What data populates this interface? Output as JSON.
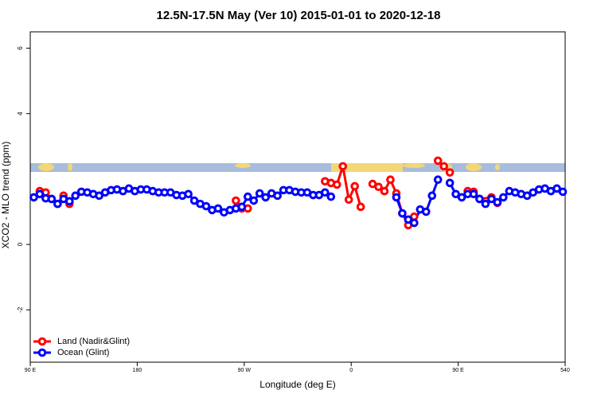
{
  "chart_data": {
    "type": "line",
    "title": "12.5N-17.5N May (Ver 10)   2015-01-01 to 2020-12-18",
    "x_label": "Longitude (deg E)",
    "y_label": "XCO2 - MLO trend (ppm)",
    "xlim": [
      90,
      540
    ],
    "ylim": [
      -3.6,
      6.5
    ],
    "xticks": [
      {
        "value": 90,
        "label": "90 E"
      },
      180,
      {
        "value": 270,
        "label": "90 W"
      },
      {
        "value": 360,
        "label": "0"
      },
      {
        "value": 450,
        "label": "90 E"
      },
      540
    ],
    "yticks": [
      -2,
      0,
      4,
      6
    ],
    "legend": "bottomleft",
    "series": [
      {
        "name": "Land (Nadir&Glint)",
        "color": "#ff0000",
        "x": [
          98,
          103,
          108,
          113,
          118,
          123,
          128,
          263,
          268,
          273,
          278,
          338,
          343,
          348,
          353,
          358,
          363,
          368,
          373,
          378,
          383,
          388,
          393,
          398,
          403,
          408,
          413,
          418,
          433,
          438,
          443,
          448,
          458,
          463,
          468,
          478,
          483
        ],
        "values": [
          1.63,
          1.59,
          1.39,
          1.24,
          1.49,
          1.24,
          null,
          1.34,
          1.1,
          1.1,
          null,
          1.93,
          1.88,
          1.83,
          2.39,
          1.37,
          1.78,
          1.15,
          null,
          1.85,
          1.76,
          1.63,
          1.98,
          1.56,
          0.95,
          0.59,
          0.85,
          null,
          2.56,
          2.39,
          2.2,
          null,
          1.63,
          1.61,
          1.39,
          1.44,
          1.27
        ]
      },
      {
        "name": "Ocean (Glint)",
        "color": "#0000ff",
        "x": [
          93,
          98,
          103,
          108,
          113,
          118,
          123,
          128,
          133,
          138,
          143,
          148,
          153,
          158,
          163,
          168,
          173,
          178,
          183,
          188,
          193,
          198,
          203,
          208,
          213,
          218,
          223,
          228,
          233,
          238,
          243,
          248,
          253,
          258,
          263,
          268,
          273,
          278,
          283,
          288,
          293,
          298,
          303,
          308,
          313,
          318,
          323,
          328,
          333,
          338,
          343,
          348,
          398,
          403,
          408,
          413,
          418,
          423,
          428,
          433,
          438,
          443,
          448,
          453,
          458,
          463,
          468,
          473,
          478,
          483,
          488,
          493,
          498,
          503,
          508,
          513,
          518,
          523,
          528,
          533,
          538
        ],
        "values": [
          1.44,
          1.54,
          1.41,
          1.39,
          1.24,
          1.39,
          1.32,
          1.49,
          1.61,
          1.59,
          1.54,
          1.49,
          1.59,
          1.66,
          1.68,
          1.63,
          1.71,
          1.63,
          1.68,
          1.68,
          1.63,
          1.59,
          1.59,
          1.59,
          1.51,
          1.49,
          1.54,
          1.34,
          1.24,
          1.17,
          1.05,
          1.1,
          0.98,
          1.05,
          1.1,
          1.15,
          1.46,
          1.34,
          1.56,
          1.44,
          1.56,
          1.49,
          1.66,
          1.66,
          1.61,
          1.59,
          1.59,
          1.51,
          1.51,
          1.59,
          1.46,
          null,
          1.44,
          0.95,
          0.76,
          0.66,
          1.07,
          1.0,
          1.49,
          1.98,
          null,
          1.88,
          1.54,
          1.44,
          1.54,
          1.54,
          1.39,
          1.24,
          1.39,
          1.29,
          1.44,
          1.63,
          1.59,
          1.54,
          1.49,
          1.59,
          1.68,
          1.71,
          1.63,
          1.71,
          1.61
        ]
      }
    ]
  }
}
